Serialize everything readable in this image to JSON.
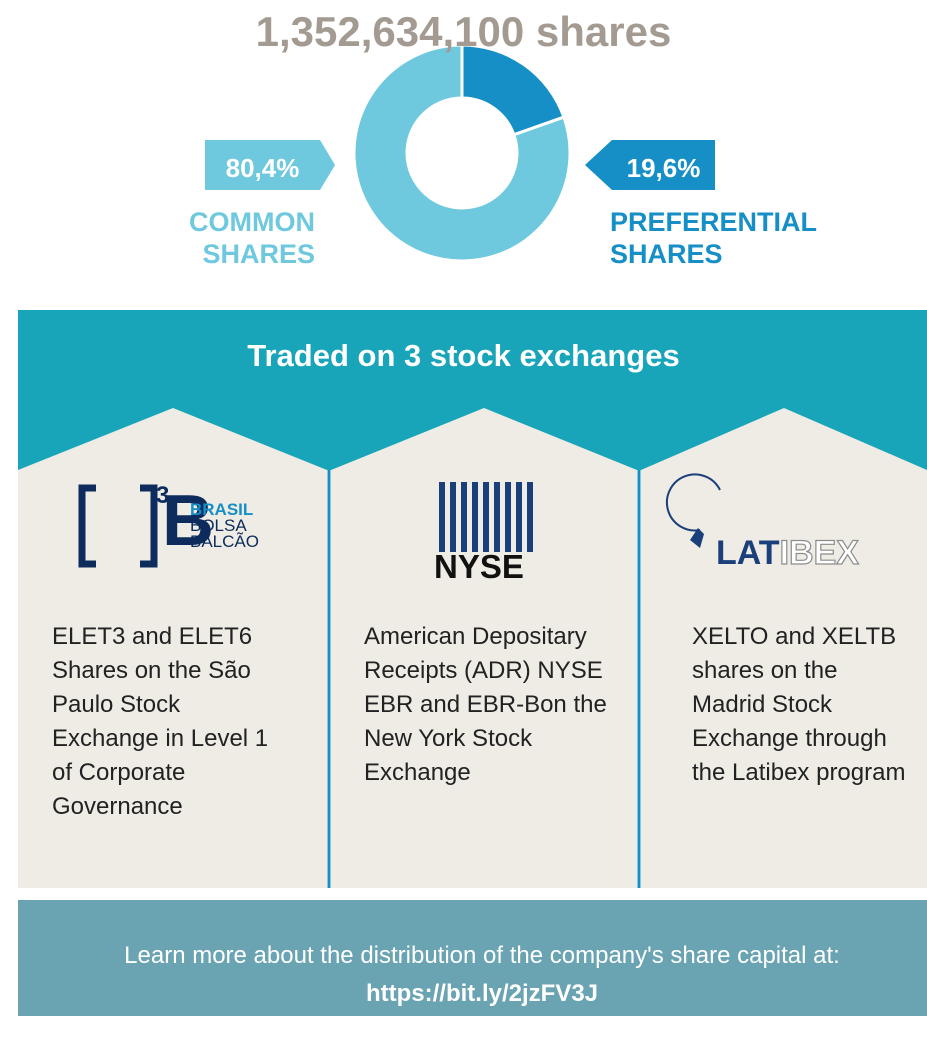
{
  "chart_data": {
    "type": "pie",
    "donut": true,
    "title": "1,352,634,100 shares",
    "categories": [
      "COMMON SHARES",
      "PREFERENTIAL SHARES"
    ],
    "values": [
      80.4,
      19.6
    ],
    "value_labels": [
      "80,4%",
      "19,6%"
    ],
    "colors": [
      "#6ec8de",
      "#168ec6"
    ]
  },
  "exchanges": {
    "title": "Traded on 3 stock exchanges",
    "items": [
      {
        "logo": "B",
        "logo_sup": "3",
        "logo_lines": [
          "BRASIL",
          "BOLSA",
          "BALCÃO"
        ],
        "text": "ELET3 and ELET6 Shares on the São Paulo Stock Exchange in Level 1 of Corporate Governance"
      },
      {
        "logo": "NYSE",
        "text": "American Depositary Receipts (ADR) NYSE EBR and EBR-Bon the New York Stock Exchange"
      },
      {
        "logo_parts": [
          "LAT",
          "IBEX"
        ],
        "text": "XELTO and XELTB shares on the Madrid Stock Exchange through the Latibex program"
      }
    ]
  },
  "footer": {
    "text": "Learn more about the distribution of the company's share capital at:",
    "link": "https://bit.ly/2jzFV3J"
  }
}
